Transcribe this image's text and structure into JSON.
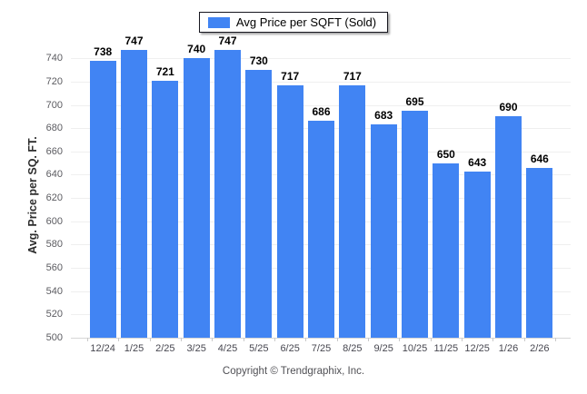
{
  "legend": {
    "label": "Avg Price per SQFT (Sold)",
    "swatch_color": "#4184f3"
  },
  "chart_data": {
    "type": "bar",
    "title": "Avg Price per SQFT (Sold)",
    "ylabel": "Avg. Price per SQ. FT.",
    "xlabel": "",
    "categories": [
      "12/24",
      "1/25",
      "2/25",
      "3/25",
      "4/25",
      "5/25",
      "6/25",
      "7/25",
      "8/25",
      "9/25",
      "10/25",
      "11/25",
      "12/25",
      "1/26",
      "2/26"
    ],
    "values": [
      738,
      747,
      721,
      740,
      747,
      730,
      717,
      686,
      717,
      683,
      695,
      650,
      643,
      690,
      646
    ],
    "ylim": [
      500,
      755
    ],
    "yticks": [
      500,
      520,
      540,
      560,
      580,
      600,
      620,
      640,
      660,
      680,
      700,
      720,
      740
    ],
    "bar_color": "#4184f3",
    "grid": true,
    "legend_position": "top"
  },
  "footer": {
    "copyright": "Copyright © Trendgraphix, Inc."
  }
}
